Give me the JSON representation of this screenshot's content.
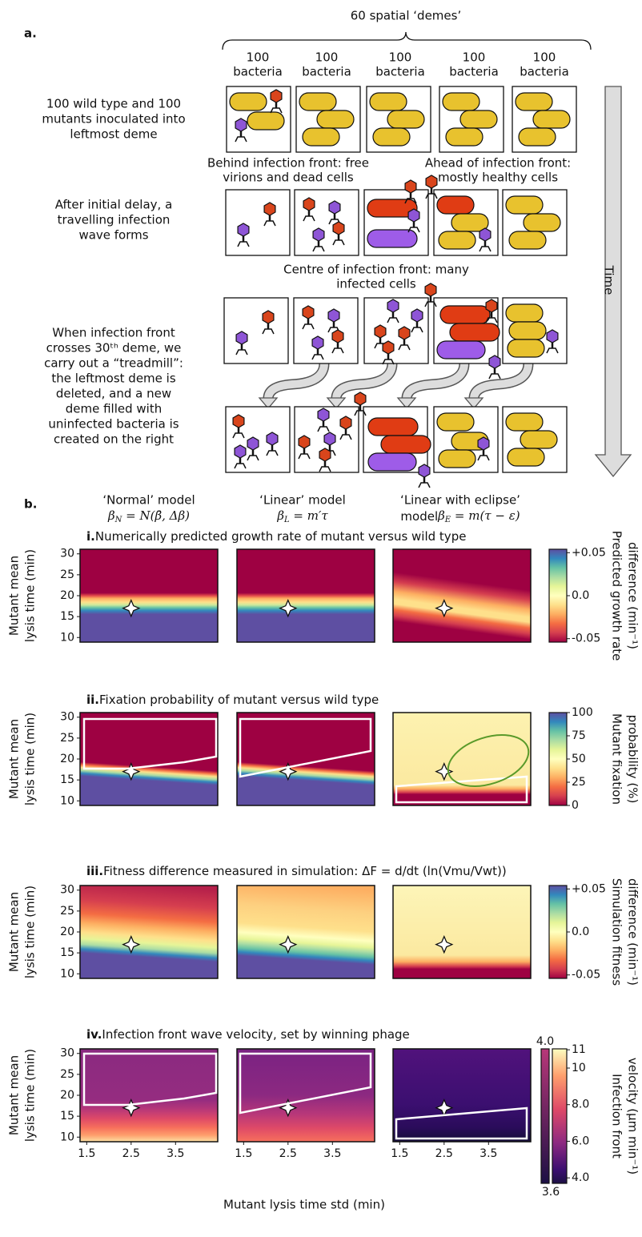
{
  "panel_a": {
    "label": "a.",
    "demes_title": "60 spatial ‘demes’",
    "deme_labels": [
      [
        "100",
        "bacteria"
      ],
      [
        "100",
        "bacteria"
      ],
      [
        "100",
        "bacteria"
      ],
      [
        "100",
        "bacteria"
      ],
      [
        "100",
        "bacteria"
      ]
    ],
    "row_captions": [
      [
        "100 wild type and 100",
        "mutants inoculated into",
        "leftmost deme"
      ],
      [
        "After initial delay, a",
        "travelling infection",
        "wave forms"
      ],
      [
        "When infection front",
        "crosses 30ᵗʰ deme, we",
        "carry out a “treadmill”:",
        "the leftmost deme is",
        "deleted, and a new",
        "deme filled with",
        "uninfected bacteria is",
        "created on the right"
      ]
    ],
    "annotations": [
      [
        "Behind infection front: free",
        "virions and dead cells"
      ],
      [
        "Ahead of infection front:",
        "mostly healthy cells"
      ],
      [
        "Centre of infection front: many",
        "infected cells"
      ]
    ],
    "time_label": "Time"
  },
  "panel_b": {
    "label": "b.",
    "models": [
      {
        "name_lines": [
          "‘Normal’ model"
        ],
        "symbol": "β",
        "sub": "N",
        "rhs": " = N(β̄, Δβ)"
      },
      {
        "name_lines": [
          "‘Linear’ model"
        ],
        "symbol": "β",
        "sub": "L",
        "rhs": " = m′τ"
      },
      {
        "name_lines": [
          "‘Linear with eclipse’",
          "model"
        ],
        "symbol": "β",
        "sub": "E",
        "rhs": " = m(τ − ε)"
      }
    ],
    "rows": [
      {
        "numeral": "i.",
        "title": "Numerically predicted growth rate of mutant versus wild type",
        "colorbar": {
          "label_lines": [
            "Predicted growth rate",
            "difference (min⁻¹)"
          ],
          "clim": [
            -0.054,
            0.054
          ],
          "ticks": [
            {
              "value": 0.05,
              "label": "+0.05"
            },
            {
              "value": 0,
              "label": "0.0"
            },
            {
              "value": -0.05,
              "label": "-0.05"
            }
          ]
        }
      },
      {
        "numeral": "ii.",
        "title": "Fixation probability of mutant versus wild type",
        "colorbar": {
          "label_lines": [
            "Mutant fixation",
            "probability (%)"
          ],
          "clim": [
            0,
            100
          ],
          "ticks": [
            0,
            25,
            50,
            75,
            100
          ]
        }
      },
      {
        "numeral": "iii.",
        "title": "Fitness difference measured in simulation: ΔF = d/dt (ln(Vmu/Vwt))",
        "colorbar": {
          "label_lines": [
            "Simulation fitness",
            "difference (min⁻¹)"
          ],
          "clim": [
            -0.054,
            0.054
          ],
          "ticks": [
            {
              "value": 0.05,
              "label": "+0.05"
            },
            {
              "value": 0,
              "label": "0.0"
            },
            {
              "value": -0.05,
              "label": "-0.05"
            }
          ]
        }
      },
      {
        "numeral": "iv.",
        "title": "Infection front wave velocity, set by winning phage",
        "colorbar": {
          "label_lines": [
            "Infection front",
            "velocity (μm min⁻¹)"
          ],
          "clim": [
            3.7,
            11.05
          ],
          "ticks": [
            {
              "value": 11,
              "label": "11"
            },
            {
              "value": 10,
              "label": "10"
            },
            {
              "value": 8,
              "label": "8.0"
            },
            {
              "value": 6,
              "label": "6.0"
            },
            {
              "value": 4,
              "label": "4.0"
            }
          ],
          "small_bar": {
            "top": {
              "value": 4,
              "label": "4.0"
            },
            "bottom": {
              "value": 3.6,
              "label": "3.6"
            }
          }
        }
      }
    ],
    "y_label_lines": [
      "Mutant mean",
      "lysis time (min)"
    ],
    "x_label": "Mutant lysis time std (min)",
    "xlim": [
      1.35,
      4.45
    ],
    "ylim": [
      8.9,
      31.1
    ],
    "xticks": [
      1.5,
      2.5,
      3.5
    ],
    "yticks": [
      10,
      15,
      20,
      25,
      30
    ],
    "wild_type": {
      "x": 2.5,
      "y": 17
    }
  }
}
